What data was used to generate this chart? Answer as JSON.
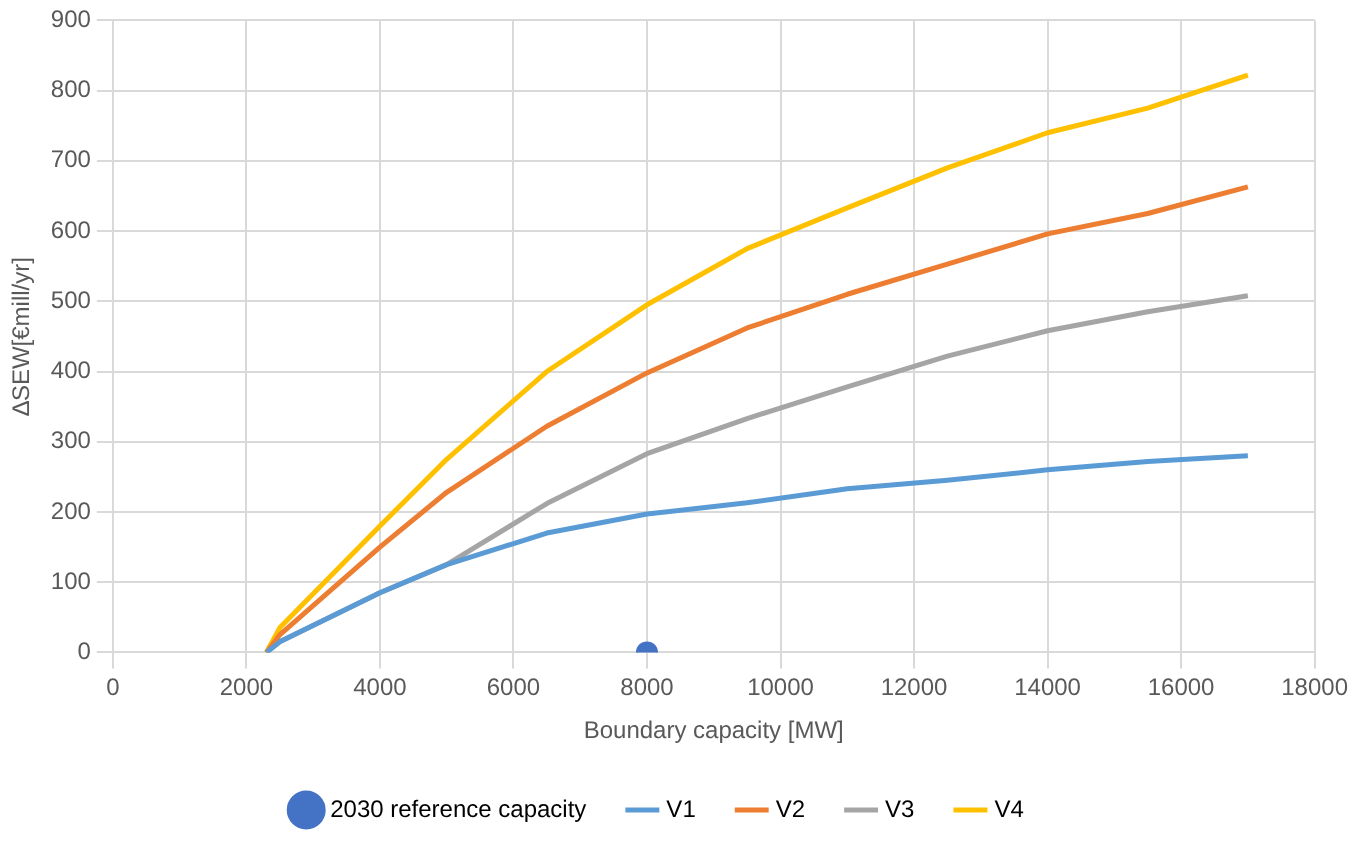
{
  "chart_data": {
    "type": "line",
    "xlabel": "Boundary capacity [MW]",
    "ylabel": "∆SEW[€mill/yr]",
    "xlim": [
      0,
      18000
    ],
    "xticks": [
      0,
      2000,
      4000,
      6000,
      8000,
      10000,
      12000,
      14000,
      16000,
      18000
    ],
    "ylim": [
      0,
      900
    ],
    "yticks": [
      0,
      100,
      200,
      300,
      400,
      500,
      600,
      700,
      800,
      900
    ],
    "grid": true,
    "legend": "bottom",
    "marker": "none",
    "line_style": "solid",
    "series": [
      {
        "name": "2030 reference capacity",
        "type": "scatter",
        "marker": "circle",
        "color": "#4472c4",
        "x": [
          8000
        ],
        "values": [
          0
        ]
      },
      {
        "name": "V1",
        "color": "#5b9bd5",
        "x": [
          2300,
          2500,
          4000,
          5000,
          6500,
          8000,
          9500,
          11000,
          12500,
          14000,
          15500,
          17000
        ],
        "values": [
          0,
          15,
          85,
          125,
          170,
          197,
          213,
          233,
          245,
          260,
          272,
          280
        ]
      },
      {
        "name": "V2",
        "color": "#ed7d31",
        "x": [
          2300,
          2500,
          4000,
          5000,
          6500,
          8000,
          9500,
          11000,
          12500,
          14000,
          15500,
          17000
        ],
        "values": [
          0,
          25,
          150,
          228,
          322,
          398,
          462,
          510,
          553,
          596,
          625,
          663
        ]
      },
      {
        "name": "V3",
        "color": "#a5a5a5",
        "x": [
          2300,
          2500,
          4000,
          5000,
          6500,
          8000,
          9500,
          11000,
          12500,
          14000,
          15500,
          17000
        ],
        "values": [
          0,
          15,
          85,
          125,
          212,
          283,
          333,
          378,
          422,
          458,
          485,
          508
        ]
      },
      {
        "name": "V4",
        "color": "#ffc000",
        "x": [
          2300,
          2500,
          4000,
          5000,
          6500,
          8000,
          9500,
          11000,
          12500,
          14000,
          15500,
          17000
        ],
        "values": [
          0,
          35,
          180,
          275,
          400,
          495,
          575,
          633,
          690,
          740,
          775,
          822
        ]
      }
    ]
  }
}
